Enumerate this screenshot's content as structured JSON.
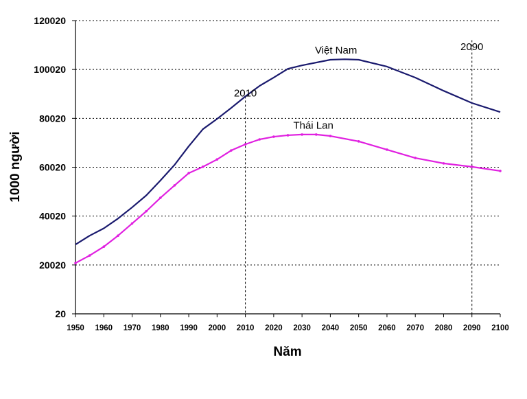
{
  "chart_data": {
    "type": "line",
    "title": "",
    "xlabel": "Năm",
    "ylabel": "1000 người",
    "xlim": [
      1950,
      2100
    ],
    "ylim": [
      20,
      120020
    ],
    "x_ticks": [
      1950,
      1960,
      1970,
      1980,
      1990,
      2000,
      2010,
      2020,
      2030,
      2040,
      2050,
      2060,
      2070,
      2080,
      2090,
      2100
    ],
    "y_ticks": [
      20,
      20020,
      40020,
      60020,
      80020,
      100020,
      120020
    ],
    "grid": "horizontal dotted",
    "series": [
      {
        "name": "Việt Nam",
        "color": "#1a1a6e",
        "x": [
          1950,
          1955,
          1960,
          1965,
          1970,
          1975,
          1980,
          1985,
          1990,
          1995,
          2000,
          2005,
          2010,
          2015,
          2020,
          2025,
          2030,
          2040,
          2045,
          2050,
          2060,
          2070,
          2080,
          2090,
          2100
        ],
        "y": [
          28400,
          32000,
          35000,
          39000,
          43600,
          48500,
          54600,
          61000,
          68600,
          75600,
          79800,
          84300,
          89000,
          93300,
          96700,
          100300,
          101700,
          104000,
          104200,
          104000,
          101200,
          96700,
          91300,
          86300,
          82600
        ]
      },
      {
        "name": "Thái Lan",
        "color": "#e020e0",
        "x": [
          1950,
          1955,
          1960,
          1965,
          1970,
          1975,
          1980,
          1985,
          1990,
          1995,
          2000,
          2005,
          2010,
          2015,
          2020,
          2025,
          2030,
          2035,
          2040,
          2050,
          2060,
          2070,
          2080,
          2090,
          2100
        ],
        "y": [
          20800,
          23900,
          27500,
          32000,
          37000,
          42000,
          47500,
          52600,
          57600,
          60200,
          63200,
          66900,
          69400,
          71400,
          72500,
          73100,
          73400,
          73400,
          72800,
          70600,
          67200,
          63800,
          61600,
          60200,
          58500
        ]
      }
    ],
    "annotations": [
      {
        "text": "Việt Nam",
        "x": 2042,
        "y": 106500
      },
      {
        "text": "Thái Lan",
        "x": 2034,
        "y": 75700
      },
      {
        "text": "2010",
        "x": 2010,
        "y": 89000
      },
      {
        "text": "2090",
        "x": 2090,
        "y": 108000
      }
    ],
    "reference_lines_x": [
      2010,
      2090
    ]
  }
}
